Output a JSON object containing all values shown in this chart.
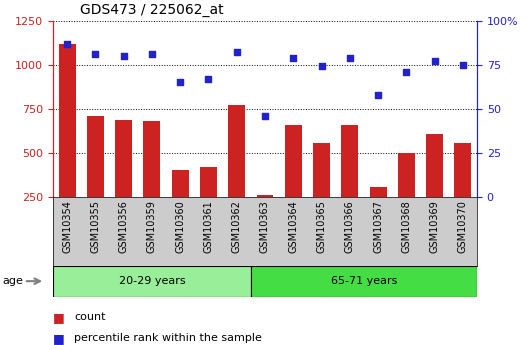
{
  "title": "GDS473 / 225062_at",
  "samples": [
    "GSM10354",
    "GSM10355",
    "GSM10356",
    "GSM10359",
    "GSM10360",
    "GSM10361",
    "GSM10362",
    "GSM10363",
    "GSM10364",
    "GSM10365",
    "GSM10366",
    "GSM10367",
    "GSM10368",
    "GSM10369",
    "GSM10370"
  ],
  "counts": [
    1120,
    710,
    685,
    680,
    400,
    420,
    770,
    260,
    660,
    555,
    655,
    305,
    500,
    605,
    555
  ],
  "percentiles": [
    87,
    81,
    80,
    81,
    65,
    67,
    82,
    46,
    79,
    74,
    79,
    58,
    71,
    77,
    75
  ],
  "group1_label": "20-29 years",
  "group2_label": "65-71 years",
  "group1_count": 7,
  "group2_count": 8,
  "bar_color": "#cc2222",
  "dot_color": "#2222cc",
  "left_axis_color": "#cc2222",
  "right_axis_color": "#2222cc",
  "ylim_left": [
    250,
    1250
  ],
  "ylim_right": [
    0,
    100
  ],
  "yticks_left": [
    250,
    500,
    750,
    1000,
    1250
  ],
  "yticks_right": [
    0,
    25,
    50,
    75,
    100
  ],
  "group1_color": "#99ee99",
  "group2_color": "#44dd44",
  "xtick_bg": "#cccccc",
  "plot_bg": "#ffffff",
  "legend_count_label": "count",
  "legend_pct_label": "percentile rank within the sample",
  "bar_bottom": 250
}
